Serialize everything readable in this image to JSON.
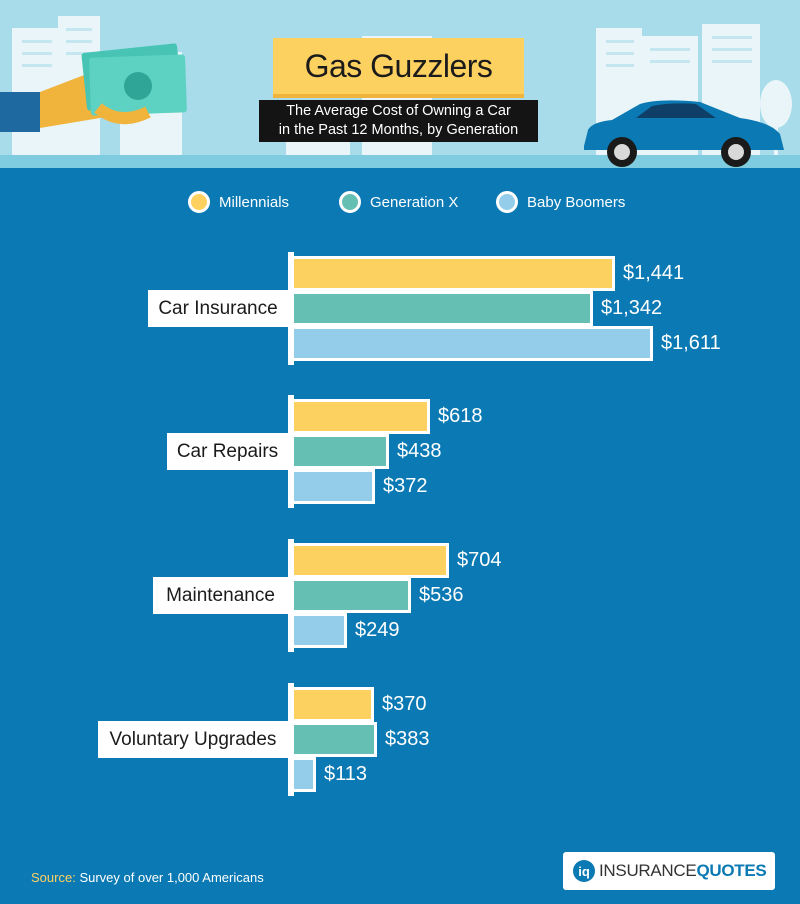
{
  "header": {
    "title": "Gas Guzzlers",
    "subtitle_line1": "The Average Cost of Owning a Car",
    "subtitle_line2": "in the Past 12 Months, by Generation"
  },
  "legend": [
    {
      "label": "Millennials",
      "color": "#fdd160"
    },
    {
      "label": "Generation X",
      "color": "#66bfb3"
    },
    {
      "label": "Baby Boomers",
      "color": "#93cdea"
    }
  ],
  "chart_data": {
    "type": "bar",
    "orientation": "horizontal",
    "title": "Gas Guzzlers",
    "subtitle": "The Average Cost of Owning a Car in the Past 12 Months, by Generation",
    "categories": [
      "Car Insurance",
      "Car Repairs",
      "Maintenance",
      "Voluntary Upgrades"
    ],
    "series": [
      {
        "name": "Millennials",
        "color": "#fdd160",
        "values": [
          1441,
          618,
          704,
          370
        ],
        "labels": [
          "$1,441",
          "$618",
          "$704",
          "$370"
        ]
      },
      {
        "name": "Generation X",
        "color": "#66bfb3",
        "values": [
          1342,
          438,
          536,
          383
        ],
        "labels": [
          "$1,342",
          "$438",
          "$536",
          "$383"
        ]
      },
      {
        "name": "Baby Boomers",
        "color": "#93cdea",
        "values": [
          1611,
          372,
          249,
          113
        ],
        "labels": [
          "$1,611",
          "$372",
          "$249",
          "$113"
        ]
      }
    ],
    "xlim": [
      0,
      1611
    ],
    "grid": false,
    "legend_position": "top"
  },
  "source": {
    "label": "Source:",
    "text": "Survey of over 1,000 Americans"
  },
  "logo": {
    "mark": "iq",
    "word1": "INSURANCE",
    "word2": "QUOTES"
  },
  "colors": {
    "background": "#0b79b3",
    "sky": "#a8dcea",
    "title_bg": "#fdd160",
    "subtitle_bg": "#141414"
  }
}
